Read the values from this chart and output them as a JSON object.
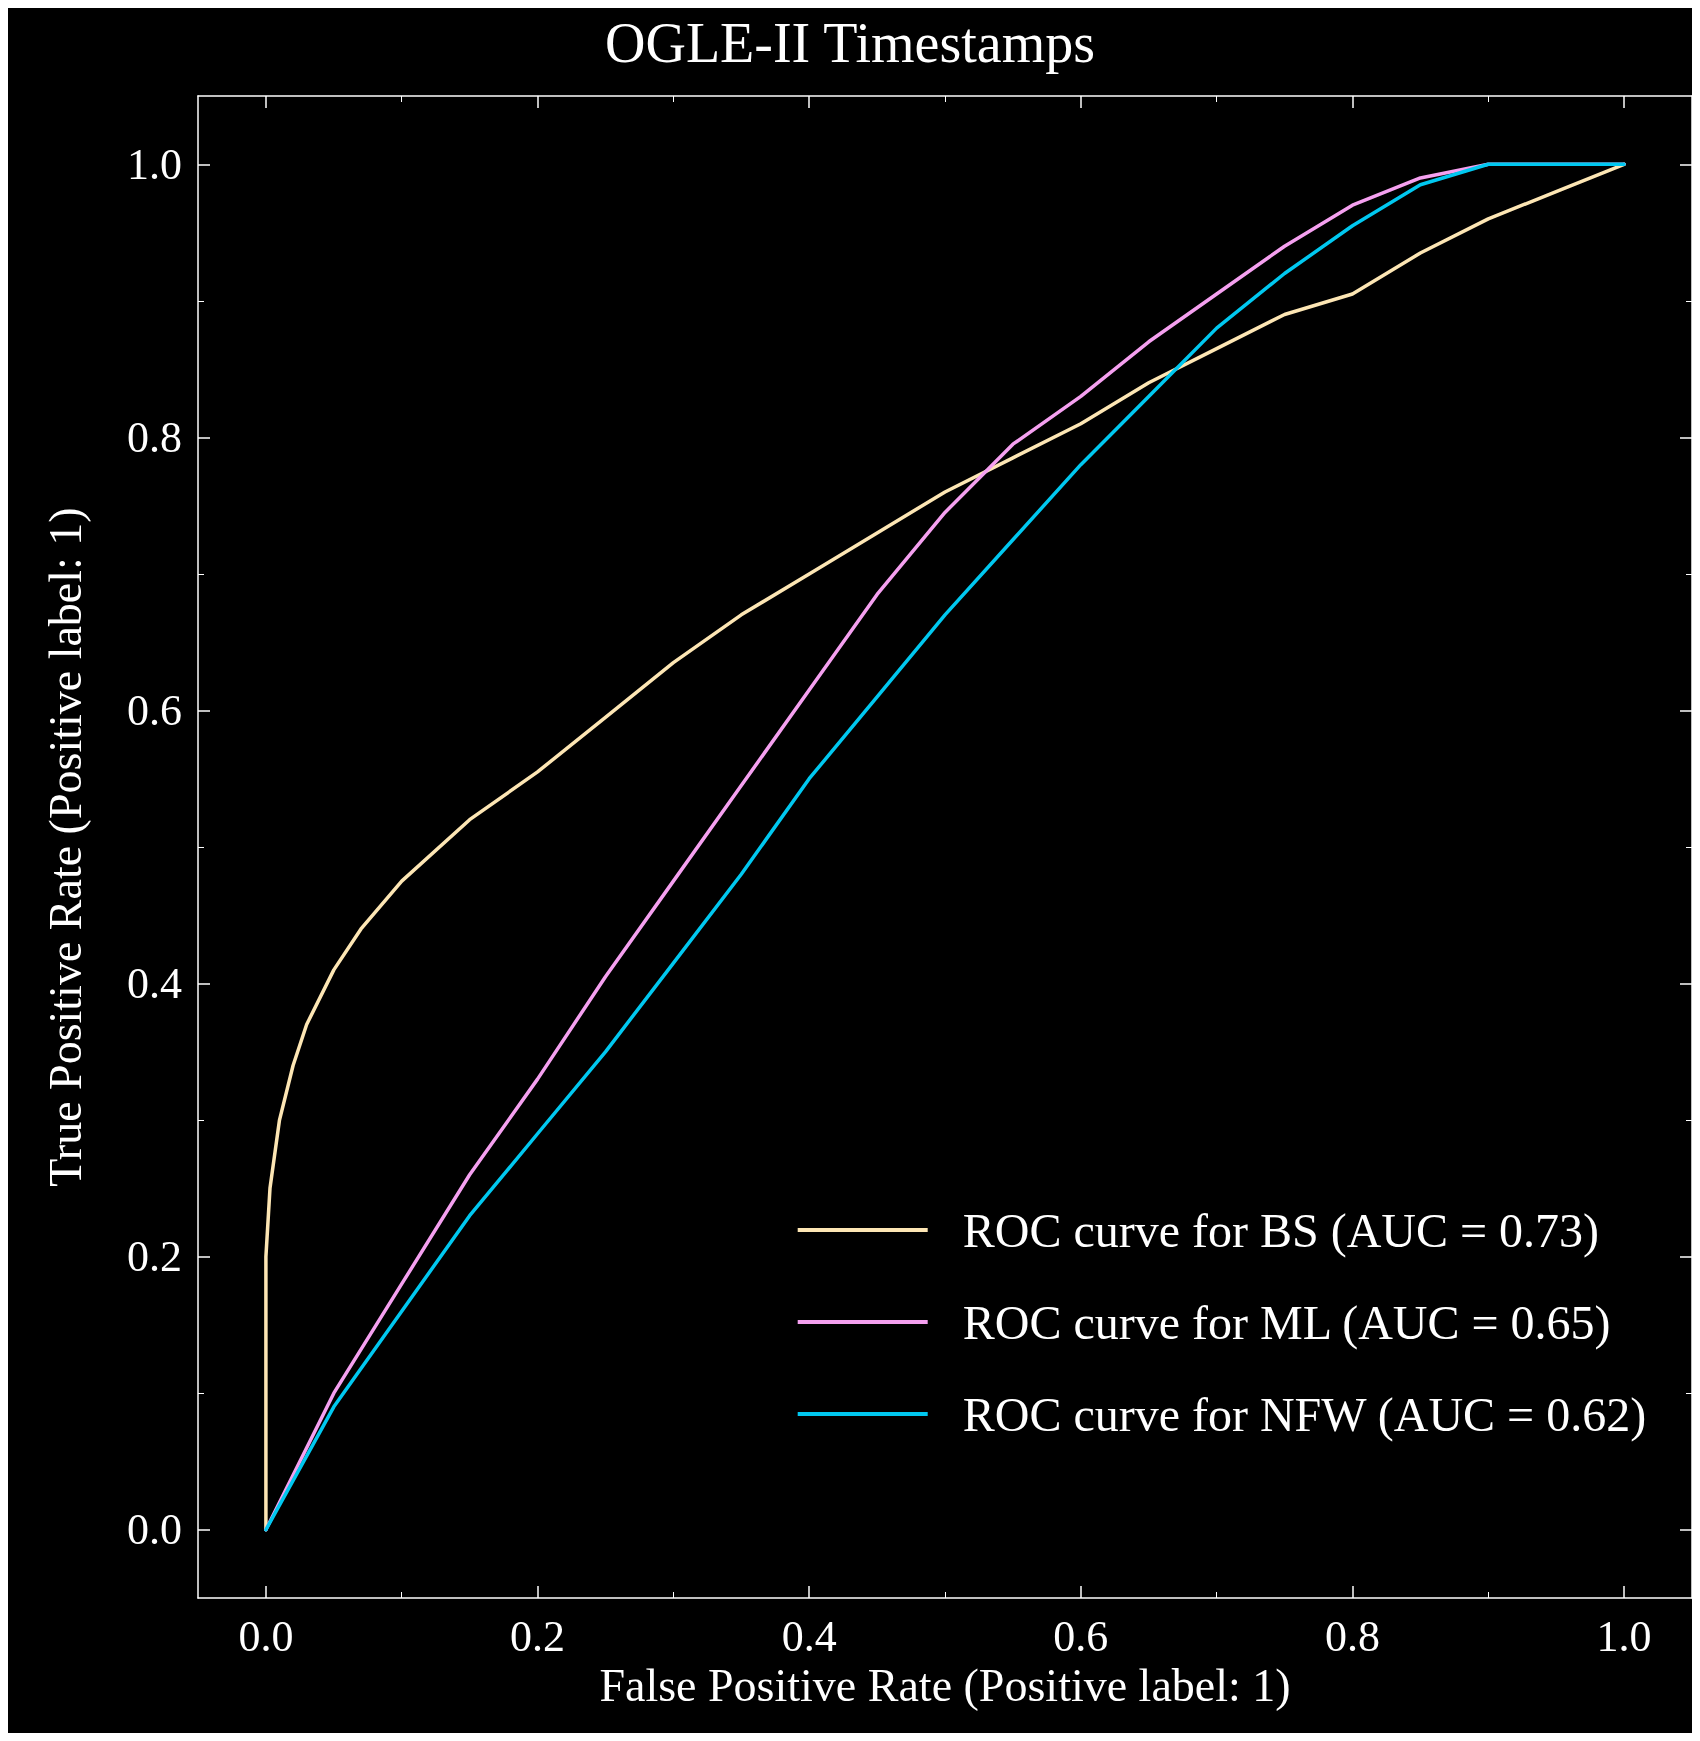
{
  "chart_data": {
    "type": "line",
    "title": "OGLE-II Timestamps",
    "xlabel": "False Positive Rate (Positive label: 1)",
    "ylabel": "True Positive Rate (Positive label: 1)",
    "xlim": [
      -0.05,
      1.05
    ],
    "ylim": [
      -0.05,
      1.05
    ],
    "xticks": [
      {
        "value": 0,
        "label": "0.0"
      },
      0.2,
      0.4,
      0.6,
      0.8,
      {
        "value": 1,
        "label": "1.0"
      }
    ],
    "yticks": [
      {
        "value": 0,
        "label": "0.0"
      },
      0.2,
      0.4,
      0.6,
      0.8,
      {
        "value": 1,
        "label": "1.0"
      }
    ],
    "grid": false,
    "legend": "bottom right",
    "marker": "none",
    "line_style": "solid",
    "series": [
      {
        "name": "ROC curve for BS (AUC = 0.73)",
        "color": "#fde6b4",
        "x": [
          0,
          0,
          0.003,
          0.01,
          0.02,
          0.03,
          0.05,
          0.07,
          0.1,
          0.15,
          0.2,
          0.25,
          0.3,
          0.35,
          0.4,
          0.45,
          0.5,
          0.55,
          0.6,
          0.65,
          0.7,
          0.75,
          0.8,
          0.85,
          0.9,
          0.95,
          1
        ],
        "values": [
          0,
          0.2,
          0.25,
          0.3,
          0.34,
          0.37,
          0.41,
          0.44,
          0.475,
          0.52,
          0.555,
          0.595,
          0.635,
          0.67,
          0.7,
          0.73,
          0.76,
          0.785,
          0.81,
          0.84,
          0.865,
          0.89,
          0.905,
          0.935,
          0.96,
          0.98,
          1
        ]
      },
      {
        "name": "ROC curve for ML (AUC = 0.65)",
        "color": "#f5a0f0",
        "x": [
          0,
          0.05,
          0.1,
          0.15,
          0.2,
          0.25,
          0.3,
          0.35,
          0.4,
          0.45,
          0.5,
          0.55,
          0.6,
          0.65,
          0.7,
          0.75,
          0.8,
          0.85,
          0.9,
          1
        ],
        "values": [
          0,
          0.1,
          0.18,
          0.26,
          0.33,
          0.405,
          0.475,
          0.545,
          0.615,
          0.685,
          0.745,
          0.795,
          0.83,
          0.87,
          0.905,
          0.94,
          0.97,
          0.99,
          1,
          1
        ]
      },
      {
        "name": "ROC curve for NFW (AUC = 0.62)",
        "color": "#00c8f0",
        "x": [
          0,
          0.05,
          0.1,
          0.15,
          0.2,
          0.25,
          0.3,
          0.35,
          0.4,
          0.45,
          0.5,
          0.55,
          0.6,
          0.65,
          0.7,
          0.75,
          0.8,
          0.85,
          0.9,
          1
        ],
        "values": [
          0,
          0.09,
          0.16,
          0.23,
          0.29,
          0.35,
          0.415,
          0.48,
          0.55,
          0.61,
          0.67,
          0.725,
          0.78,
          0.83,
          0.88,
          0.92,
          0.955,
          0.985,
          1,
          1
        ]
      }
    ]
  }
}
